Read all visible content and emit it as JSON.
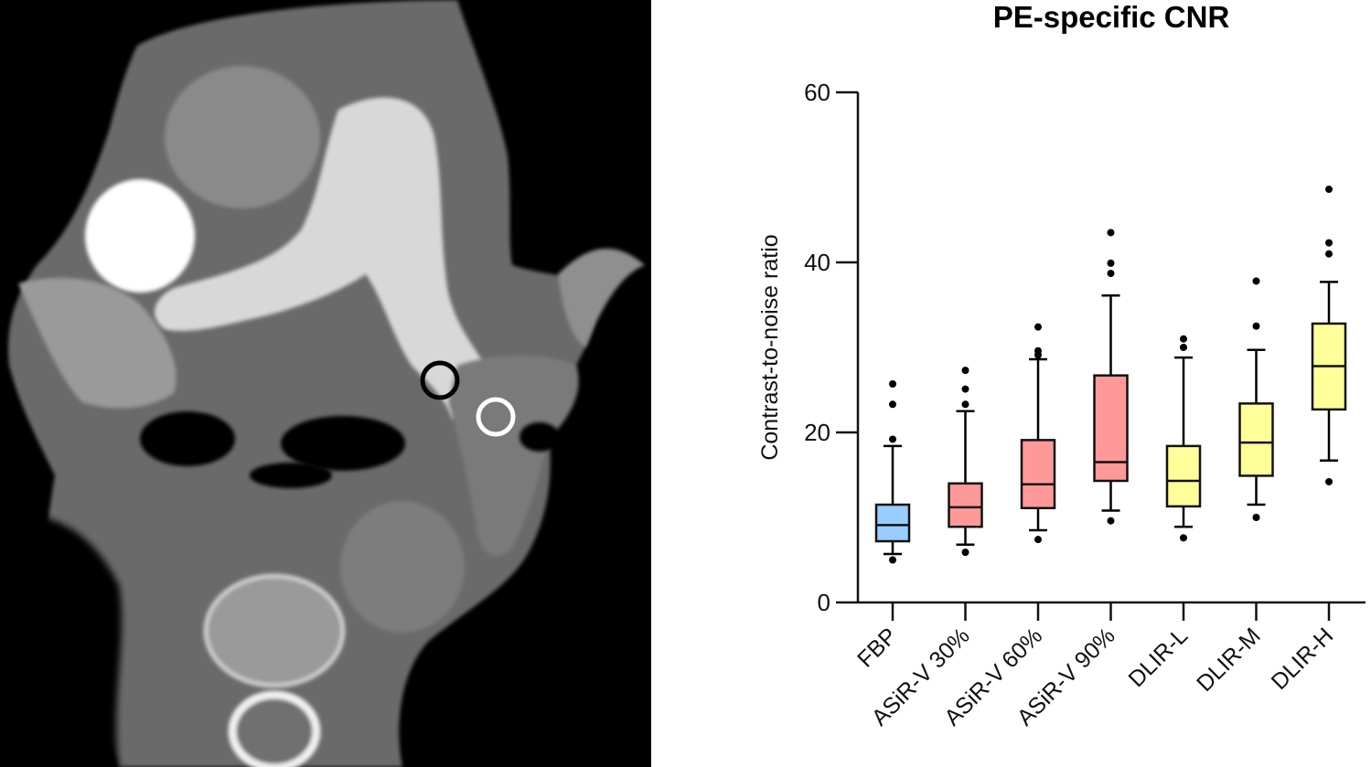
{
  "figure": {
    "left_panel": {
      "type": "CT image",
      "description": "Axial contrast-enhanced chest CT showing pulmonary artery with two circular ROI markers",
      "roi_markers": [
        {
          "name": "black-roi",
          "color": "#000000"
        },
        {
          "name": "white-roi",
          "color": "#ffffff"
        }
      ]
    }
  },
  "chart_data": {
    "type": "box",
    "title": "PE-specific CNR",
    "xlabel": "",
    "ylabel": "Contrast-to-noise ratio",
    "ylim": [
      0,
      60
    ],
    "yticks": [
      0,
      20,
      40,
      60
    ],
    "ytick_labels": [
      "0",
      "20",
      "40",
      "60"
    ],
    "grid": false,
    "legend": null,
    "categories": [
      "FBP",
      "ASiR-V 30%",
      "ASiR-V 60%",
      "ASiR-V 90%",
      "DLIR-L",
      "DLIR-M",
      "DLIR-H"
    ],
    "colors": [
      "#99ccff",
      "#ff9999",
      "#ff9999",
      "#ff9999",
      "#ffff99",
      "#ffff99",
      "#ffff99"
    ],
    "series": [
      {
        "name": "FBP",
        "whisker_low": 5.7,
        "q1": 7.2,
        "median": 9.1,
        "q3": 11.5,
        "whisker_high": 18.4,
        "outliers": [
          25.7,
          23.3,
          19.2,
          5.0
        ]
      },
      {
        "name": "ASiR-V 30%",
        "whisker_low": 6.8,
        "q1": 8.9,
        "median": 11.2,
        "q3": 14.0,
        "whisker_high": 22.5,
        "outliers": [
          27.3,
          25.1,
          23.3,
          5.9
        ]
      },
      {
        "name": "ASiR-V 60%",
        "whisker_low": 8.5,
        "q1": 11.1,
        "median": 13.9,
        "q3": 19.1,
        "whisker_high": 28.6,
        "outliers": [
          32.4,
          29.6,
          29.1,
          7.4
        ]
      },
      {
        "name": "ASiR-V 90%",
        "whisker_low": 10.8,
        "q1": 14.3,
        "median": 16.5,
        "q3": 26.7,
        "whisker_high": 36.1,
        "outliers": [
          43.5,
          39.9,
          38.7,
          9.6
        ]
      },
      {
        "name": "DLIR-L",
        "whisker_low": 8.9,
        "q1": 11.3,
        "median": 14.3,
        "q3": 18.4,
        "whisker_high": 28.8,
        "outliers": [
          31.0,
          30.0,
          7.6
        ]
      },
      {
        "name": "DLIR-M",
        "whisker_low": 11.5,
        "q1": 14.9,
        "median": 18.8,
        "q3": 23.4,
        "whisker_high": 29.7,
        "outliers": [
          37.8,
          32.5,
          10.0
        ]
      },
      {
        "name": "DLIR-H",
        "whisker_low": 16.7,
        "q1": 22.7,
        "median": 27.8,
        "q3": 32.8,
        "whisker_high": 37.7,
        "outliers": [
          48.6,
          42.3,
          41.0,
          14.2
        ]
      }
    ]
  }
}
